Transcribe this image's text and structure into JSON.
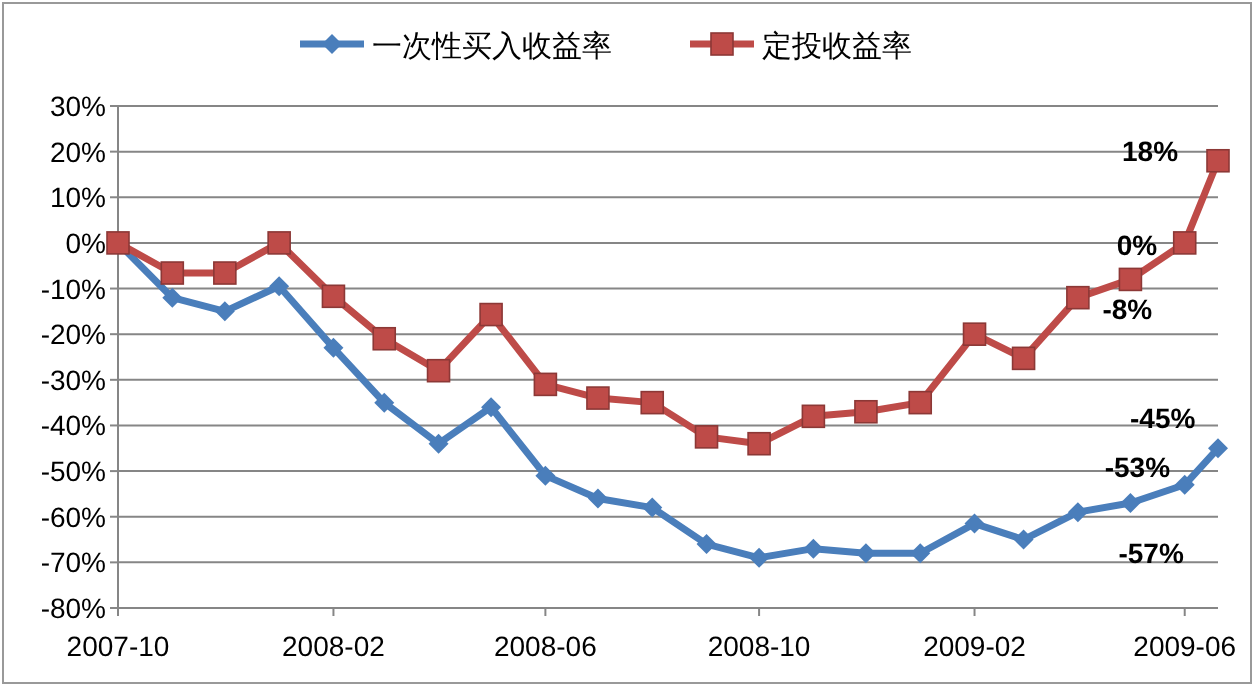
{
  "chart_data": {
    "type": "line",
    "x": [
      "2007-10",
      "2007-11",
      "2007-12",
      "2008-01",
      "2008-02",
      "2008-03",
      "2008-04",
      "2008-05",
      "2008-06",
      "2008-07",
      "2008-08",
      "2008-09",
      "2008-10",
      "2008-11",
      "2008-12",
      "2009-01",
      "2009-02",
      "2009-03",
      "2009-04",
      "2009-05",
      "2009-06",
      "2009-06-20"
    ],
    "series": [
      {
        "name": "一次性买入收益率",
        "color": "#4a7ebb",
        "marker": "diamond",
        "values": [
          0,
          -12,
          -15,
          -9.5,
          -23,
          -35,
          -44,
          -36,
          -51,
          -56,
          -58,
          -66,
          -69,
          -67,
          -68,
          -68,
          -61.5,
          -65,
          -59,
          -57,
          -53,
          -45
        ],
        "value_labels": [
          null,
          null,
          null,
          null,
          null,
          null,
          null,
          null,
          null,
          null,
          null,
          null,
          null,
          null,
          null,
          null,
          null,
          null,
          null,
          "-57%",
          "-53%",
          "-45%"
        ]
      },
      {
        "name": "定投收益率",
        "color": "#be4b48",
        "marker": "square",
        "values": [
          0,
          -6.6,
          -6.6,
          0,
          -11.7,
          -21,
          -28,
          -15.7,
          -31,
          -34,
          -35,
          -42.5,
          -44,
          -38,
          -37,
          -35,
          -20,
          -25.3,
          -12,
          -8,
          0,
          18
        ],
        "value_labels": [
          null,
          null,
          null,
          null,
          null,
          null,
          null,
          null,
          null,
          null,
          null,
          null,
          null,
          null,
          null,
          null,
          null,
          null,
          null,
          "-8%",
          "0%",
          "18%"
        ]
      }
    ],
    "xlim": [
      "2007-10",
      "2009-06-20"
    ],
    "xticks": [
      "2007-10",
      "2008-02",
      "2008-06",
      "2008-10",
      "2009-02",
      "2009-06"
    ],
    "ylim": [
      -80,
      30
    ],
    "yticks": [
      {
        "value": 30,
        "label": "30%"
      },
      {
        "value": 20,
        "label": "20%"
      },
      {
        "value": 10,
        "label": "10%"
      },
      {
        "value": 0,
        "label": "0%"
      },
      {
        "value": -10,
        "label": "-10%"
      },
      {
        "value": -20,
        "label": "-20%"
      },
      {
        "value": -30,
        "label": "-30%"
      },
      {
        "value": -40,
        "label": "-40%"
      },
      {
        "value": -50,
        "label": "-50%"
      },
      {
        "value": -60,
        "label": "-60%"
      },
      {
        "value": -70,
        "label": "-70%"
      },
      {
        "value": -80,
        "label": "-80%"
      }
    ],
    "grid": "y",
    "legend": "top",
    "line_style": "solid"
  }
}
